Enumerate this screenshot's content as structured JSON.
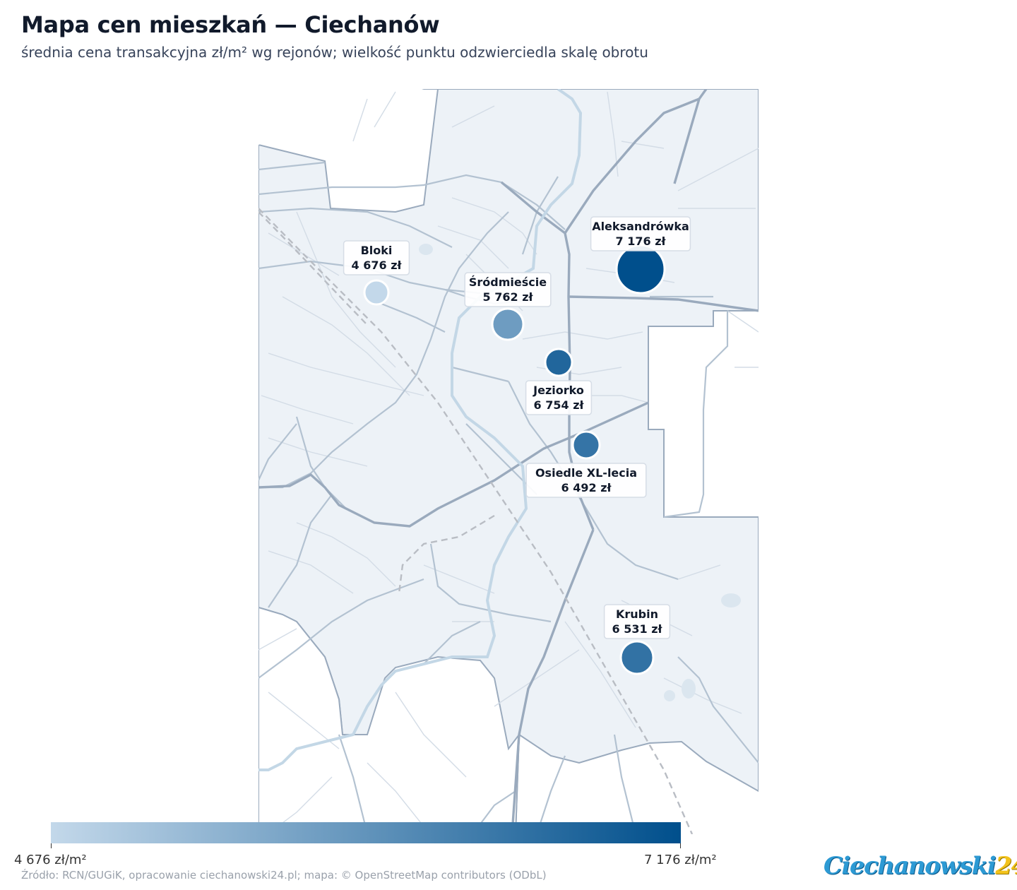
{
  "title": "Mapa cen mieszkań — Ciechanów",
  "subtitle": "średnia cena transakcyjna zł/m² wg rejonów; wielkość punktu odzwierciedla skalę obrotu",
  "colors": {
    "low": "#c3d8ea",
    "high": "#004f8c",
    "map_fill": "#edf2f7"
  },
  "districts": [
    {
      "name": "Aleksandrówka",
      "price_label": "7 176 zł",
      "price": 7176
    },
    {
      "name": "Bloki",
      "price_label": "4 676 zł",
      "price": 4676
    },
    {
      "name": "Śródmieście",
      "price_label": "5 762 zł",
      "price": 5762
    },
    {
      "name": "Jeziorko",
      "price_label": "6 754 zł",
      "price": 6754
    },
    {
      "name": "Osiedle XL-lecia",
      "price_label": "6 492 zł",
      "price": 6492
    },
    {
      "name": "Krubin",
      "price_label": "6 531 zł",
      "price": 6531
    }
  ],
  "legend": {
    "min_label": "4 676 zł/m²",
    "max_label": "7 176 zł/m²",
    "min": 4676,
    "max": 7176
  },
  "source": "Źródło: RCN/GUGiK, opracowanie ciechanowski24.pl; mapa: © OpenStreetMap contributors (ODbL)",
  "logo": {
    "text": "Ciechanowski",
    "number": "24"
  }
}
